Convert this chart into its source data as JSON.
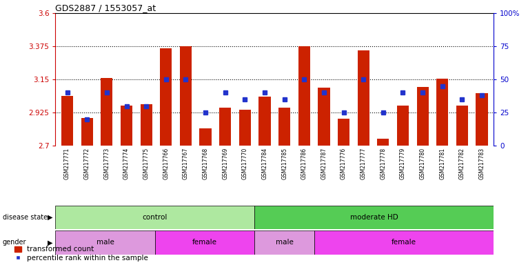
{
  "title": "GDS2887 / 1553057_at",
  "samples": [
    "GSM217771",
    "GSM217772",
    "GSM217773",
    "GSM217774",
    "GSM217775",
    "GSM217766",
    "GSM217767",
    "GSM217768",
    "GSM217769",
    "GSM217770",
    "GSM217784",
    "GSM217785",
    "GSM217786",
    "GSM217787",
    "GSM217776",
    "GSM217777",
    "GSM217778",
    "GSM217779",
    "GSM217780",
    "GSM217781",
    "GSM217782",
    "GSM217783"
  ],
  "red_values": [
    3.04,
    2.89,
    3.16,
    2.975,
    2.98,
    3.36,
    3.375,
    2.82,
    2.96,
    2.945,
    3.035,
    2.96,
    3.375,
    3.095,
    2.885,
    3.35,
    2.75,
    2.975,
    3.1,
    3.155,
    2.975,
    3.055
  ],
  "blue_pct": [
    40,
    20,
    40,
    30,
    30,
    50,
    50,
    25,
    40,
    35,
    40,
    35,
    50,
    40,
    25,
    50,
    25,
    40,
    40,
    45,
    35,
    38
  ],
  "ymin": 2.7,
  "ymax": 3.6,
  "yticks": [
    2.7,
    2.925,
    3.15,
    3.375,
    3.6
  ],
  "ytick_labels": [
    "2.7",
    "2.925",
    "3.15",
    "3.375",
    "3.6"
  ],
  "right_yticks": [
    0,
    25,
    50,
    75,
    100
  ],
  "right_ytick_labels": [
    "0",
    "25",
    "50",
    "75",
    "100%"
  ],
  "hlines": [
    2.925,
    3.15,
    3.375
  ],
  "disease_state_groups": [
    {
      "label": "control",
      "start": 0,
      "end": 10,
      "color": "#aee8a0"
    },
    {
      "label": "moderate HD",
      "start": 10,
      "end": 22,
      "color": "#55cc55"
    }
  ],
  "gender_groups": [
    {
      "label": "male",
      "start": 0,
      "end": 5,
      "color": "#dd99dd"
    },
    {
      "label": "female",
      "start": 5,
      "end": 10,
      "color": "#ee44ee"
    },
    {
      "label": "male",
      "start": 10,
      "end": 13,
      "color": "#dd99dd"
    },
    {
      "label": "female",
      "start": 13,
      "end": 22,
      "color": "#ee44ee"
    }
  ],
  "bar_color": "#cc2200",
  "blue_color": "#2233cc",
  "left_label_color": "#cc0000",
  "right_label_color": "#0000cc",
  "legend_red": "transformed count",
  "legend_blue": "percentile rank within the sample"
}
